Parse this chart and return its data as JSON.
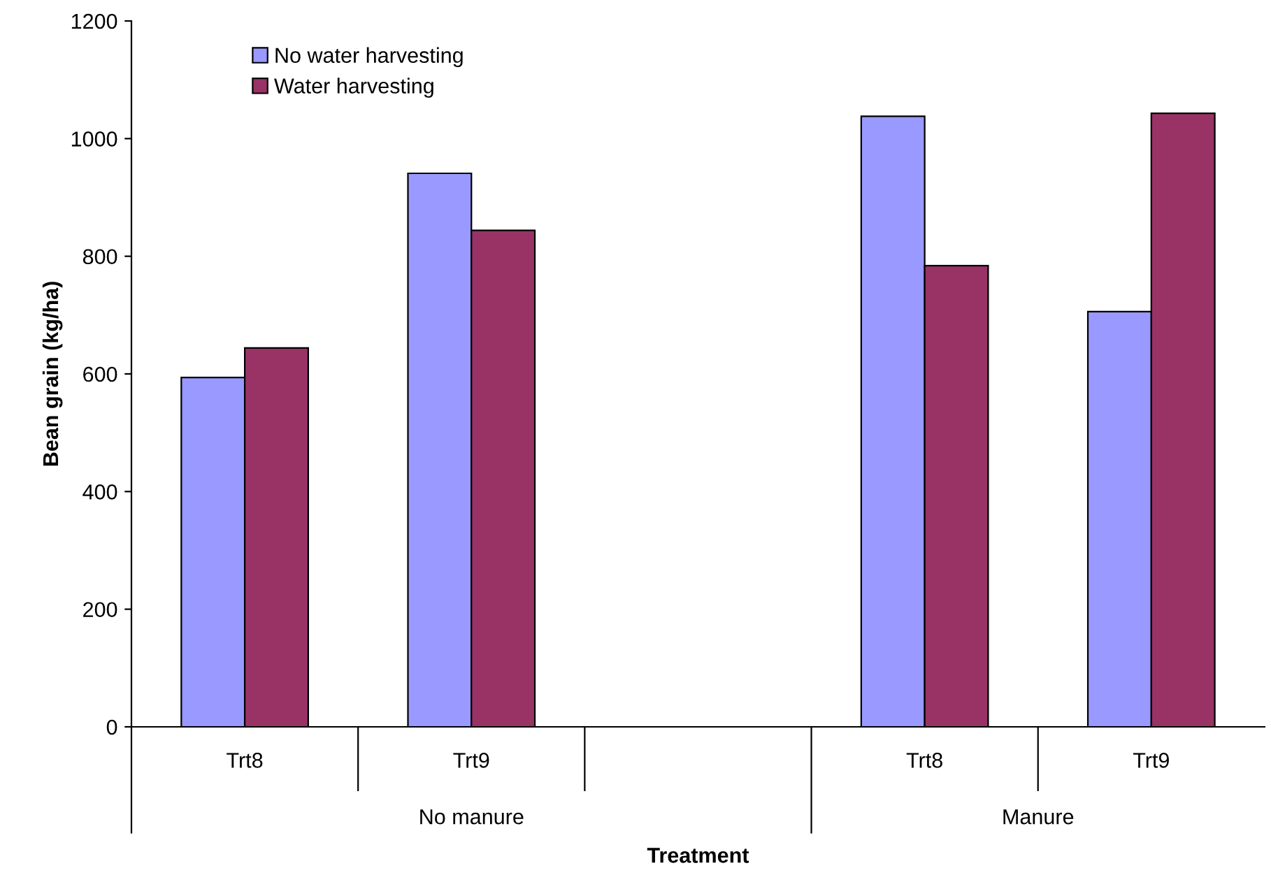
{
  "chart_data": {
    "type": "bar",
    "xlabel": "Treatment",
    "ylabel": "Bean grain (kg/ha)",
    "categories": [
      "Trt8",
      "Trt9",
      null,
      "Trt8",
      "Trt9"
    ],
    "series": [
      {
        "name": "No water harvesting",
        "color": "#9999ff",
        "values": [
          594,
          941,
          null,
          1038,
          706
        ]
      },
      {
        "name": "Water harvesting",
        "color": "#993366",
        "values": [
          644,
          844,
          null,
          784,
          1043
        ]
      }
    ],
    "annotations": [
      "No manure",
      "Manure"
    ],
    "ylim": [
      0,
      1200
    ],
    "yticks": [
      0,
      200,
      400,
      600,
      800,
      1000,
      1200
    ],
    "grid": false,
    "legend": "top left"
  }
}
